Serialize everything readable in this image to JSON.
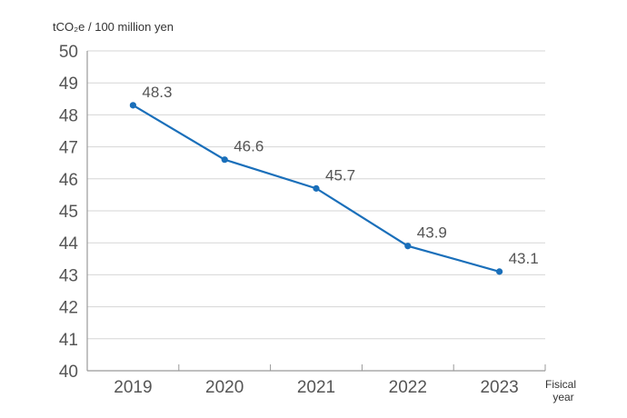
{
  "chart_data": {
    "type": "line",
    "title": "",
    "ylabel": "tCO₂e / 100 million yen",
    "xlabel_line1": "Fisical",
    "xlabel_line2": "year",
    "categories": [
      "2019",
      "2020",
      "2021",
      "2022",
      "2023"
    ],
    "series": [
      {
        "values": [
          48.3,
          46.6,
          45.7,
          43.9,
          43.1
        ],
        "color": "#1a6fba"
      }
    ],
    "data_labels": [
      "48.3",
      "46.6",
      "45.7",
      "43.9",
      "43.1"
    ],
    "ylim": [
      40,
      50
    ],
    "yticks": [
      40,
      41,
      42,
      43,
      44,
      45,
      46,
      47,
      48,
      49,
      50
    ],
    "grid": true,
    "legend": "none"
  }
}
